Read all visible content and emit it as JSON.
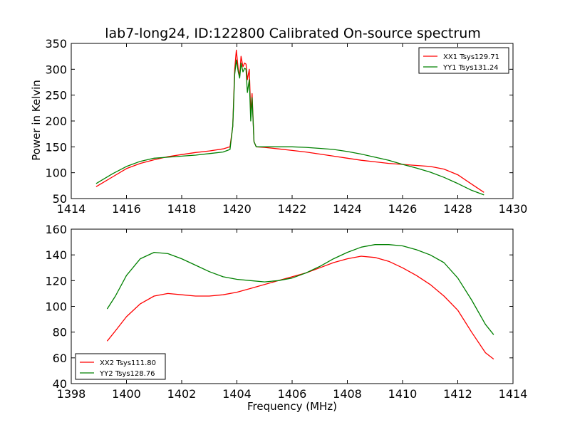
{
  "colors": {
    "red": "#ff0000",
    "green": "#008000",
    "axis": "#000000"
  },
  "chart_data": [
    {
      "type": "line",
      "title": "lab7-long24, ID:122800 Calibrated On-source spectrum",
      "xlabel": "",
      "ylabel": "Power in Kelvin",
      "xlim": [
        1414,
        1430
      ],
      "ylim": [
        50,
        350
      ],
      "xticks": [
        "1414",
        "1416",
        "1418",
        "1420",
        "1422",
        "1424",
        "1426",
        "1428",
        "1430"
      ],
      "yticks": [
        "50",
        "100",
        "150",
        "200",
        "250",
        "300",
        "350"
      ],
      "legend_position": "top-right",
      "series": [
        {
          "name": "XX1 Tsys129.71",
          "color": "#ff0000",
          "points": [
            [
              1414.9,
              73
            ],
            [
              1415.5,
              92
            ],
            [
              1416.0,
              108
            ],
            [
              1416.5,
              118
            ],
            [
              1417.0,
              125
            ],
            [
              1417.5,
              131
            ],
            [
              1418.0,
              135
            ],
            [
              1418.5,
              139
            ],
            [
              1419.0,
              142
            ],
            [
              1419.5,
              146
            ],
            [
              1419.75,
              150
            ],
            [
              1419.85,
              190
            ],
            [
              1419.92,
              300
            ],
            [
              1419.98,
              337
            ],
            [
              1420.05,
              300
            ],
            [
              1420.1,
              287
            ],
            [
              1420.15,
              325
            ],
            [
              1420.22,
              305
            ],
            [
              1420.28,
              312
            ],
            [
              1420.33,
              310
            ],
            [
              1420.38,
              280
            ],
            [
              1420.45,
              300
            ],
            [
              1420.5,
              215
            ],
            [
              1420.55,
              253
            ],
            [
              1420.62,
              160
            ],
            [
              1420.7,
              150
            ],
            [
              1421.0,
              149
            ],
            [
              1421.5,
              146
            ],
            [
              1422.0,
              143
            ],
            [
              1422.5,
              140
            ],
            [
              1423.0,
              136
            ],
            [
              1423.5,
              132
            ],
            [
              1424.0,
              128
            ],
            [
              1424.5,
              124
            ],
            [
              1425.0,
              121
            ],
            [
              1425.5,
              118
            ],
            [
              1426.0,
              116
            ],
            [
              1426.5,
              114
            ],
            [
              1427.0,
              112
            ],
            [
              1427.5,
              107
            ],
            [
              1428.0,
              96
            ],
            [
              1428.5,
              78
            ],
            [
              1428.95,
              62
            ]
          ]
        },
        {
          "name": "YY1 Tsys131.24",
          "color": "#008000",
          "points": [
            [
              1414.9,
              79
            ],
            [
              1415.5,
              98
            ],
            [
              1416.0,
              112
            ],
            [
              1416.5,
              122
            ],
            [
              1417.0,
              128
            ],
            [
              1417.5,
              130
            ],
            [
              1418.0,
              132
            ],
            [
              1418.5,
              134
            ],
            [
              1419.0,
              137
            ],
            [
              1419.5,
              140
            ],
            [
              1419.75,
              145
            ],
            [
              1419.85,
              190
            ],
            [
              1419.92,
              290
            ],
            [
              1419.98,
              318
            ],
            [
              1420.05,
              295
            ],
            [
              1420.1,
              283
            ],
            [
              1420.15,
              312
            ],
            [
              1420.22,
              295
            ],
            [
              1420.28,
              302
            ],
            [
              1420.33,
              300
            ],
            [
              1420.38,
              255
            ],
            [
              1420.45,
              280
            ],
            [
              1420.5,
              200
            ],
            [
              1420.55,
              245
            ],
            [
              1420.62,
              160
            ],
            [
              1420.7,
              150
            ],
            [
              1421.0,
              150
            ],
            [
              1421.5,
              150
            ],
            [
              1422.0,
              150
            ],
            [
              1422.5,
              149
            ],
            [
              1423.0,
              147
            ],
            [
              1423.5,
              145
            ],
            [
              1424.0,
              141
            ],
            [
              1424.5,
              136
            ],
            [
              1425.0,
              130
            ],
            [
              1425.5,
              124
            ],
            [
              1426.0,
              116
            ],
            [
              1426.5,
              109
            ],
            [
              1427.0,
              101
            ],
            [
              1427.5,
              91
            ],
            [
              1428.0,
              79
            ],
            [
              1428.5,
              66
            ],
            [
              1428.95,
              57
            ]
          ]
        }
      ]
    },
    {
      "type": "line",
      "title": "",
      "xlabel": "Frequency (MHz)",
      "ylabel": "",
      "xlim": [
        1398,
        1414
      ],
      "ylim": [
        40,
        160
      ],
      "xticks": [
        "1398",
        "1400",
        "1402",
        "1404",
        "1406",
        "1408",
        "1410",
        "1412",
        "1414"
      ],
      "yticks": [
        "40",
        "60",
        "80",
        "100",
        "120",
        "140",
        "160"
      ],
      "legend_position": "bottom-left",
      "series": [
        {
          "name": "XX2 Tsys111.80",
          "color": "#ff0000",
          "points": [
            [
              1399.3,
              73
            ],
            [
              1399.6,
              81
            ],
            [
              1400.0,
              92
            ],
            [
              1400.5,
              102
            ],
            [
              1401.0,
              108
            ],
            [
              1401.5,
              110
            ],
            [
              1402.0,
              109
            ],
            [
              1402.5,
              108
            ],
            [
              1403.0,
              108
            ],
            [
              1403.5,
              109
            ],
            [
              1404.0,
              111
            ],
            [
              1404.5,
              114
            ],
            [
              1405.0,
              117
            ],
            [
              1405.5,
              120
            ],
            [
              1406.0,
              123
            ],
            [
              1406.5,
              126
            ],
            [
              1407.0,
              130
            ],
            [
              1407.5,
              134
            ],
            [
              1408.0,
              137
            ],
            [
              1408.5,
              139
            ],
            [
              1409.0,
              138
            ],
            [
              1409.5,
              135
            ],
            [
              1410.0,
              130
            ],
            [
              1410.5,
              124
            ],
            [
              1411.0,
              117
            ],
            [
              1411.5,
              108
            ],
            [
              1412.0,
              97
            ],
            [
              1412.5,
              80
            ],
            [
              1413.0,
              64
            ],
            [
              1413.3,
              59
            ]
          ]
        },
        {
          "name": "YY2 Tsys128.76",
          "color": "#008000",
          "points": [
            [
              1399.3,
              98
            ],
            [
              1399.6,
              108
            ],
            [
              1400.0,
              124
            ],
            [
              1400.5,
              137
            ],
            [
              1401.0,
              142
            ],
            [
              1401.5,
              141
            ],
            [
              1402.0,
              137
            ],
            [
              1402.5,
              132
            ],
            [
              1403.0,
              127
            ],
            [
              1403.5,
              123
            ],
            [
              1404.0,
              121
            ],
            [
              1404.5,
              120
            ],
            [
              1405.0,
              119
            ],
            [
              1405.5,
              120
            ],
            [
              1406.0,
              122
            ],
            [
              1406.5,
              126
            ],
            [
              1407.0,
              131
            ],
            [
              1407.5,
              137
            ],
            [
              1408.0,
              142
            ],
            [
              1408.5,
              146
            ],
            [
              1409.0,
              148
            ],
            [
              1409.5,
              148
            ],
            [
              1410.0,
              147
            ],
            [
              1410.5,
              144
            ],
            [
              1411.0,
              140
            ],
            [
              1411.5,
              134
            ],
            [
              1412.0,
              122
            ],
            [
              1412.5,
              105
            ],
            [
              1413.0,
              86
            ],
            [
              1413.3,
              78
            ]
          ]
        }
      ]
    }
  ]
}
